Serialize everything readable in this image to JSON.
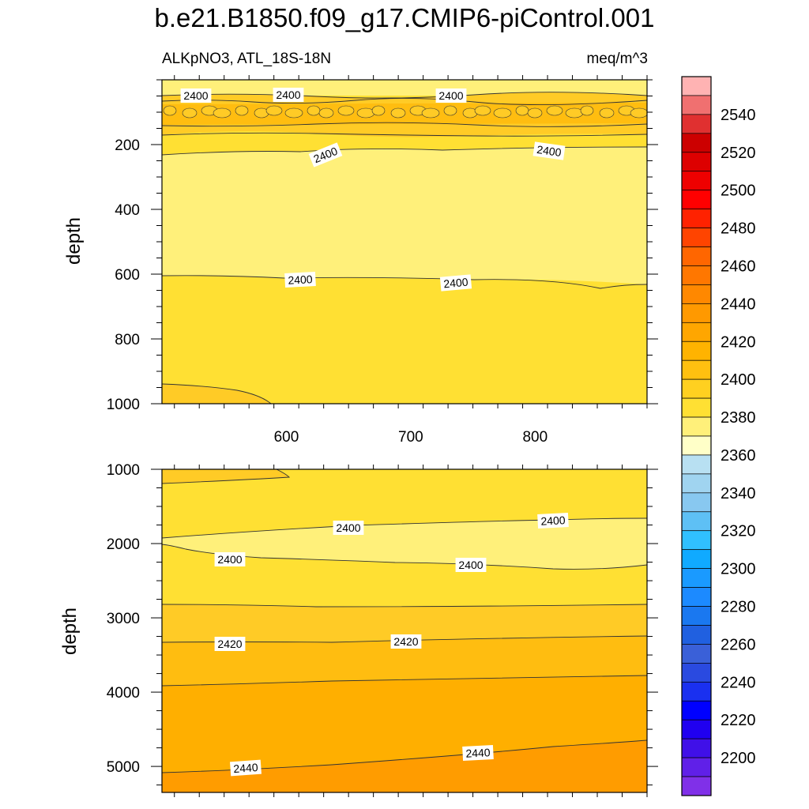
{
  "chart_data": {
    "type": "contour",
    "title": "b.e21.B1850.f09_g17.CMIP6-piControl.001",
    "left_subtitle": "ALKpNO3, ATL_18S-18N",
    "right_subtitle": "meq/m^3",
    "colors": {
      "fill_2380": "#ffffc8",
      "fill_2390": "#fff07a",
      "fill_2400": "#ffe033",
      "fill_2410": "#ffcb26",
      "fill_2420": "#ffbd10",
      "fill_2430": "#ffaf00",
      "fill_2440": "#ff9c00",
      "contour_line": "#333333"
    },
    "panels": [
      {
        "ylabel": "depth",
        "ylim": [
          1000,
          0
        ],
        "xlim": [
          500,
          890
        ],
        "xticks": [
          "600",
          "700",
          "800"
        ],
        "yticks": [
          "200",
          "400",
          "600",
          "800",
          "1000"
        ],
        "contour_labels": [
          "2400",
          "2400",
          "2400",
          "2400",
          "2400",
          "2400",
          "2400"
        ]
      },
      {
        "ylabel": "depth",
        "ylim": [
          5350,
          1000
        ],
        "xlim": [
          500,
          890
        ],
        "yticks": [
          "1000",
          "2000",
          "3000",
          "4000",
          "5000"
        ],
        "contour_labels": [
          "2400",
          "2400",
          "2400",
          "2400",
          "2420",
          "2420",
          "2440",
          "2440"
        ]
      }
    ],
    "colorbar": {
      "levels": [
        "2540",
        "2520",
        "2500",
        "2480",
        "2460",
        "2440",
        "2420",
        "2400",
        "2380",
        "2360",
        "2340",
        "2320",
        "2300",
        "2280",
        "2260",
        "2240",
        "2220",
        "2200"
      ],
      "colors": [
        "#ffb3b3",
        "#f07070",
        "#e03030",
        "#cc0000",
        "#dd0000",
        "#ee0000",
        "#ff0000",
        "#ff2200",
        "#ff4400",
        "#ff6600",
        "#ff7700",
        "#ff8800",
        "#ff9900",
        "#ffa600",
        "#ffb300",
        "#ffc010",
        "#ffd020",
        "#ffe033",
        "#fff07a",
        "#ffffc8",
        "#b8e0f2",
        "#a0d4f0",
        "#88c8f0",
        "#5ec0f5",
        "#30c0ff",
        "#10aaff",
        "#1a9aff",
        "#1c8aff",
        "#1a78f0",
        "#2060e0",
        "#3a60d8",
        "#2a4ae0",
        "#1a30f0",
        "#0000ff",
        "#2000f0",
        "#4010e8",
        "#6020e8",
        "#8030e8"
      ]
    }
  }
}
